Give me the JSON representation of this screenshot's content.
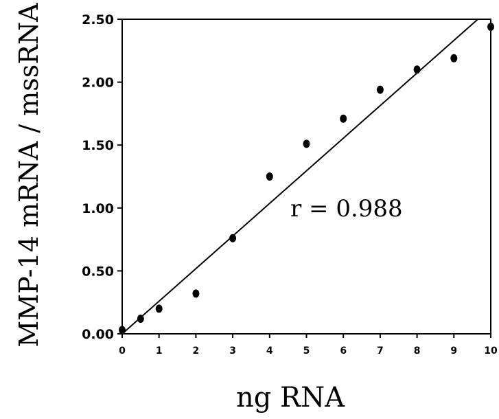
{
  "chart_data": {
    "type": "scatter",
    "title": "",
    "xlabel": "ng RNA",
    "ylabel": "MMP-14 mRNA / mssRNA",
    "xlim": [
      0,
      10
    ],
    "ylim": [
      0,
      2.5
    ],
    "x_ticks": [
      "0",
      "1",
      "2",
      "3",
      "4",
      "5",
      "6",
      "7",
      "8",
      "9",
      "10"
    ],
    "y_ticks": [
      "0.00",
      "0.50",
      "1.00",
      "1.50",
      "2.00",
      "2.50"
    ],
    "grid": false,
    "points": [
      {
        "x": 0,
        "y": 0.03
      },
      {
        "x": 0.5,
        "y": 0.12
      },
      {
        "x": 1,
        "y": 0.2
      },
      {
        "x": 2,
        "y": 0.32
      },
      {
        "x": 3,
        "y": 0.76
      },
      {
        "x": 4,
        "y": 1.25
      },
      {
        "x": 5,
        "y": 1.51
      },
      {
        "x": 6,
        "y": 1.71
      },
      {
        "x": 7,
        "y": 1.94
      },
      {
        "x": 8,
        "y": 2.1
      },
      {
        "x": 9,
        "y": 2.19
      },
      {
        "x": 10,
        "y": 2.44
      }
    ],
    "fit_line": {
      "x": [
        0,
        9.65
      ],
      "y": [
        0.0,
        2.5
      ]
    },
    "annotation": "r = 0.988"
  }
}
